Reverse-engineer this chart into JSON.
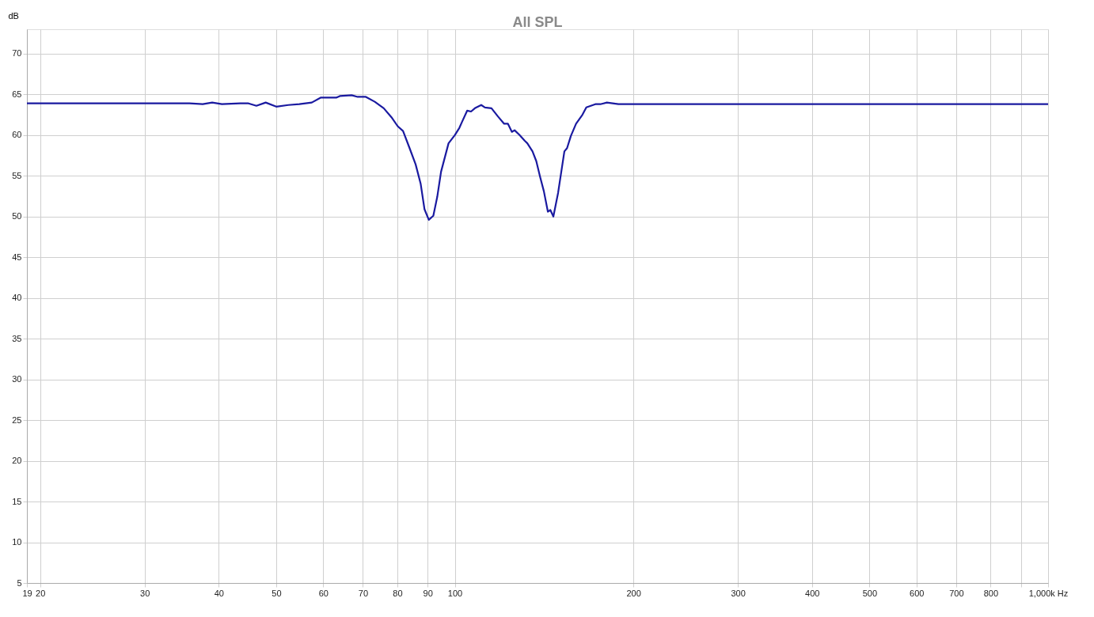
{
  "chart_data": {
    "type": "line",
    "title": "All SPL",
    "ylabel": "dB",
    "log": "x",
    "grid": true,
    "legend": false,
    "marker": "none",
    "line_style": "solid",
    "xlim": [
      19,
      1000
    ],
    "ylim": [
      5,
      73
    ],
    "xticks": [
      19,
      20,
      30,
      40,
      50,
      60,
      70,
      80,
      90,
      100,
      200,
      300,
      400,
      500,
      600,
      700,
      800,
      {
        "value": 900,
        "label": null
      },
      {
        "value": 1000,
        "label": "1,000k Hz"
      }
    ],
    "yticks": [
      5,
      10,
      15,
      20,
      25,
      30,
      35,
      40,
      45,
      50,
      55,
      60,
      65,
      70
    ],
    "series": [
      {
        "color": "#1a1aa0",
        "x": [
          19,
          25,
          30,
          35.7,
          37.6,
          39,
          40.5,
          43.5,
          44.9,
          46.3,
          48,
          50,
          52.4,
          54.7,
          57.4,
          59.4,
          63.1,
          64,
          67,
          68.6,
          70.8,
          73.3,
          75.9,
          78.2,
          80.1,
          81.8,
          83.8,
          85.9,
          87.6,
          88.9,
          90.4,
          92,
          93.4,
          94.8,
          97.6,
          100,
          101.8,
          102.8,
          104.9,
          106.5,
          108.1,
          110.8,
          112.4,
          115.3,
          118.2,
          121.1,
          122.9,
          124.8,
          126.1,
          128.6,
          131.2,
          132.5,
          135.2,
          137.2,
          139.2,
          141.3,
          143.5,
          144.9,
          146.6,
          149.3,
          153,
          154.6,
          156.9,
          160.1,
          164.1,
          166.6,
          172.5,
          175.9,
          180.4,
          188.7,
          196.3,
          300,
          500,
          1000
        ],
        "values": [
          63.9,
          63.9,
          63.9,
          63.9,
          63.8,
          64,
          63.8,
          63.9,
          63.9,
          63.6,
          64,
          63.5,
          63.7,
          63.8,
          64,
          64.6,
          64.6,
          64.8,
          64.9,
          64.7,
          64.7,
          64.1,
          63.3,
          62.2,
          61.1,
          60.5,
          58.5,
          56.4,
          54,
          50.9,
          49.6,
          50.1,
          52.4,
          55.5,
          59,
          60,
          60.9,
          61.6,
          63,
          62.9,
          63.3,
          63.7,
          63.4,
          63.3,
          62.3,
          61.4,
          61.4,
          60.4,
          60.6,
          60,
          59.3,
          59,
          58,
          56.8,
          54.9,
          53.1,
          50.6,
          50.8,
          50,
          52.9,
          58,
          58.4,
          59.9,
          61.4,
          62.5,
          63.4,
          63.8,
          63.8,
          64,
          63.8,
          63.8,
          63.8,
          63.8,
          63.8
        ]
      }
    ]
  }
}
